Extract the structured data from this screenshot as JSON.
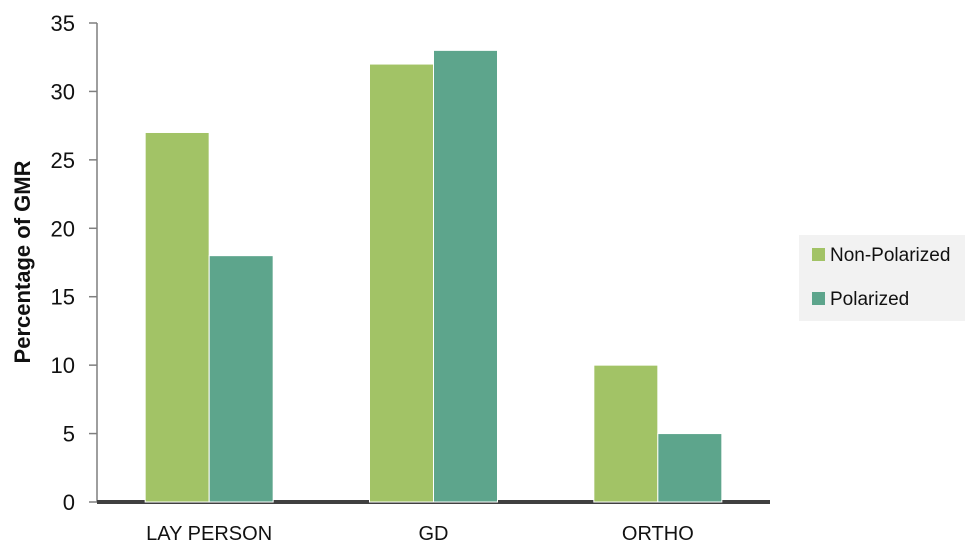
{
  "chart_data": {
    "type": "bar",
    "title": "",
    "xlabel": "",
    "ylabel": "Percentage of GMR",
    "categories": [
      "LAY PERSON",
      "GD",
      "ORTHO"
    ],
    "series": [
      {
        "name": "Non-Polarized",
        "values": [
          27,
          32,
          10
        ],
        "color": "#a2c366"
      },
      {
        "name": "Polarized",
        "values": [
          18,
          33,
          5
        ],
        "color": "#5da58c"
      }
    ],
    "ylim": [
      0,
      35
    ],
    "yticks": [
      0,
      5,
      10,
      15,
      20,
      25,
      30,
      35
    ],
    "grid": false,
    "legend": {
      "position": "right",
      "background": "#f2f2f2"
    },
    "axis_color": "#404040"
  }
}
